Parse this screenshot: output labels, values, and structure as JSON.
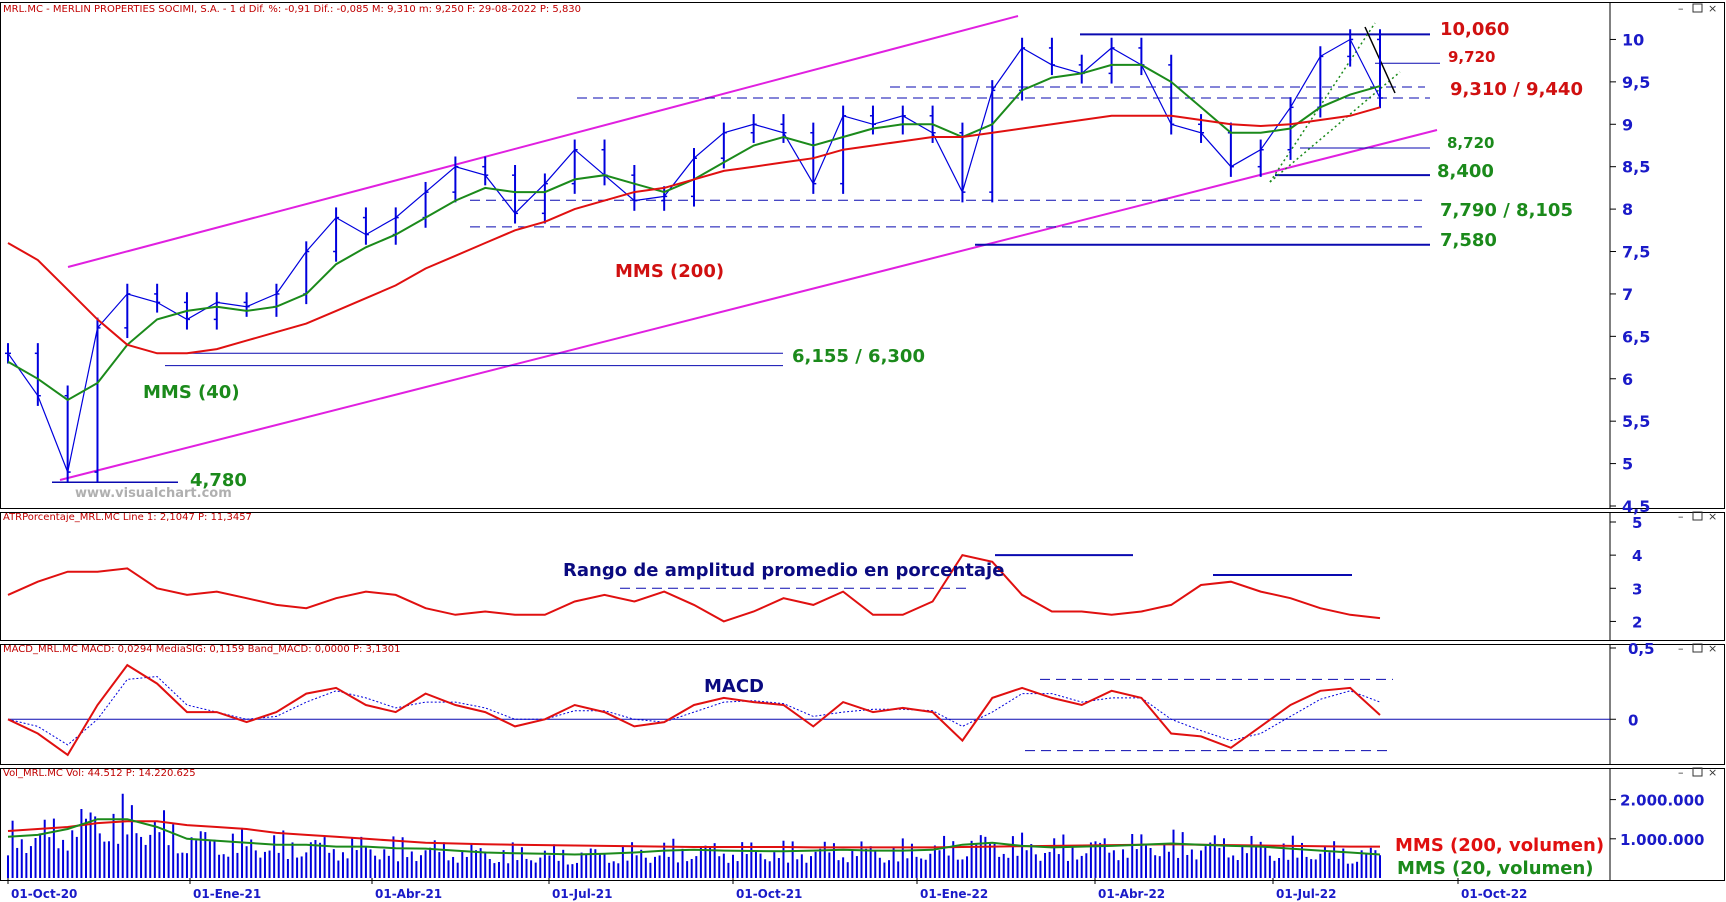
{
  "colors": {
    "price": "#0000dd",
    "mms200": "#e01010",
    "mms40": "#1b8a1b",
    "channel": "#e020e0",
    "level": "#0a0ab0",
    "axis": "#1a1ac8",
    "frame": "#000000",
    "header": "#c00000"
  },
  "panels": {
    "price": {
      "header": "MRL.MC - MERLIN PROPERTIES SOCIMI, S.A. - 1 d  Dif. %: -0,91  Dif.: -0,085  M: 9,310  m: 9,250  F: 29-08-2022  P: 5,830",
      "watermark": "www.visualchart.com",
      "ticks": [
        "10",
        "9,5",
        "9",
        "8,5",
        "8",
        "7,5",
        "7",
        "6,5",
        "6",
        "5,5",
        "5",
        "4,5"
      ],
      "annotations": {
        "mms200": "MMS (200)",
        "mms40": "MMS (40)",
        "low": "4,780",
        "support1": "6,155 / 6,300",
        "resistance": "10,060",
        "level_9720": "9,720",
        "level_9310": "9,310 / 9,440",
        "level_8720": "8,720",
        "level_8400": "8,400",
        "level_7790": "7,790 / 8,105",
        "level_7580": "7,580"
      }
    },
    "atr": {
      "header": "ATRPorcentaje_MRL.MC  Line 1: 2,1047  P: 11,3457",
      "title": "Rango de amplitud promedio en porcentaje",
      "ticks": [
        "5",
        "4",
        "3",
        "2"
      ]
    },
    "macd": {
      "header": "MACD_MRL.MC  MACD: 0,0294  MediaSIG: 0,1159  Band_MACD: 0,0000  P: 3,1301",
      "title": "MACD",
      "ticks": [
        "0,5",
        "0"
      ]
    },
    "volume": {
      "header": "Vol_MRL.MC  Vol: 44.512  P: 14.220.625",
      "ticks": [
        "2.000.000",
        "1.000.000"
      ],
      "legend_200": "MMS (200, volumen)",
      "legend_20": "MMS (20, volumen)"
    }
  },
  "x_axis": {
    "labels": [
      "01-Oct-20",
      "01-Ene-21",
      "01-Abr-21",
      "01-Jul-21",
      "01-Oct-21",
      "01-Ene-22",
      "01-Abr-22",
      "01-Jul-22",
      "01-Oct-22"
    ]
  },
  "chart_data": [
    {
      "type": "line",
      "title": "MRL.MC - MERLIN PROPERTIES SOCIMI, S.A. - 1 d",
      "x": [
        "01-Oct-20",
        "15-Oct-20",
        "02-Nov-20",
        "16-Nov-20",
        "01-Dic-20",
        "15-Dic-20",
        "04-Ene-21",
        "18-Ene-21",
        "01-Feb-21",
        "15-Feb-21",
        "01-Mar-21",
        "15-Mar-21",
        "01-Abr-21",
        "15-Abr-21",
        "03-May-21",
        "17-May-21",
        "01-Jun-21",
        "15-Jun-21",
        "01-Jul-21",
        "15-Jul-21",
        "02-Ago-21",
        "16-Ago-21",
        "01-Sep-21",
        "15-Sep-21",
        "01-Oct-21",
        "15-Oct-21",
        "02-Nov-21",
        "15-Nov-21",
        "01-Dic-21",
        "15-Dic-21",
        "03-Ene-22",
        "17-Ene-22",
        "01-Feb-22",
        "15-Feb-22",
        "01-Mar-22",
        "15-Mar-22",
        "01-Abr-22",
        "18-Abr-22",
        "02-May-22",
        "16-May-22",
        "01-Jun-22",
        "15-Jun-22",
        "01-Jul-22",
        "15-Jul-22",
        "01-Ago-22",
        "15-Ago-22",
        "29-Ago-22"
      ],
      "series": [
        {
          "name": "Close",
          "values": [
            6.3,
            5.8,
            4.9,
            6.6,
            7.0,
            6.9,
            6.7,
            6.9,
            6.85,
            7.0,
            7.5,
            7.9,
            7.7,
            7.9,
            8.2,
            8.5,
            8.4,
            7.95,
            8.3,
            8.7,
            8.4,
            8.1,
            8.15,
            8.6,
            8.9,
            9.0,
            8.9,
            8.3,
            9.1,
            9.0,
            9.1,
            8.9,
            8.2,
            9.4,
            9.9,
            9.7,
            9.6,
            9.9,
            9.7,
            9.0,
            8.9,
            8.5,
            8.7,
            9.2,
            9.8,
            10.0,
            9.31
          ]
        },
        {
          "name": "MMS (40)",
          "values": [
            6.2,
            6.0,
            5.75,
            5.95,
            6.4,
            6.7,
            6.8,
            6.85,
            6.8,
            6.85,
            7.0,
            7.35,
            7.55,
            7.7,
            7.9,
            8.1,
            8.25,
            8.2,
            8.2,
            8.35,
            8.4,
            8.3,
            8.2,
            8.35,
            8.55,
            8.75,
            8.85,
            8.75,
            8.85,
            8.95,
            9.0,
            9.0,
            8.85,
            9.0,
            9.4,
            9.55,
            9.6,
            9.7,
            9.7,
            9.5,
            9.2,
            8.9,
            8.9,
            8.95,
            9.2,
            9.35,
            9.45
          ]
        },
        {
          "name": "MMS (200)",
          "values": [
            7.6,
            7.4,
            7.05,
            6.7,
            6.4,
            6.3,
            6.3,
            6.35,
            6.45,
            6.55,
            6.65,
            6.8,
            6.95,
            7.1,
            7.3,
            7.45,
            7.6,
            7.75,
            7.85,
            8.0,
            8.1,
            8.2,
            8.25,
            8.35,
            8.45,
            8.5,
            8.55,
            8.6,
            8.7,
            8.75,
            8.8,
            8.85,
            8.85,
            8.9,
            8.95,
            9.0,
            9.05,
            9.1,
            9.1,
            9.1,
            9.05,
            9.0,
            8.98,
            9.0,
            9.05,
            9.1,
            9.2
          ]
        }
      ],
      "ylim": [
        4.5,
        10.3
      ],
      "horizontal_levels": [
        4.78,
        6.155,
        6.3,
        7.58,
        7.79,
        8.105,
        8.4,
        8.72,
        9.31,
        9.44,
        9.72,
        10.06
      ]
    },
    {
      "type": "line",
      "title": "ATRPorcentaje_MRL.MC",
      "series": [
        {
          "name": "Line 1",
          "values": [
            2.8,
            3.2,
            3.5,
            3.5,
            3.6,
            3.0,
            2.8,
            2.9,
            2.7,
            2.5,
            2.4,
            2.7,
            2.9,
            2.8,
            2.4,
            2.2,
            2.3,
            2.2,
            2.2,
            2.6,
            2.8,
            2.6,
            2.9,
            2.5,
            2.0,
            2.3,
            2.7,
            2.5,
            2.9,
            2.2,
            2.2,
            2.6,
            4.0,
            3.8,
            2.8,
            2.3,
            2.3,
            2.2,
            2.3,
            2.5,
            3.1,
            3.2,
            2.9,
            2.7,
            2.4,
            2.2,
            2.1
          ]
        }
      ],
      "ylim": [
        1.5,
        5.0
      ]
    },
    {
      "type": "line",
      "title": "MACD_MRL.MC",
      "series": [
        {
          "name": "MACD",
          "values": [
            0.0,
            -0.1,
            -0.25,
            0.1,
            0.38,
            0.25,
            0.05,
            0.05,
            -0.02,
            0.05,
            0.18,
            0.22,
            0.1,
            0.05,
            0.18,
            0.1,
            0.05,
            -0.05,
            0.0,
            0.1,
            0.05,
            -0.05,
            -0.02,
            0.1,
            0.15,
            0.12,
            0.1,
            -0.05,
            0.12,
            0.05,
            0.08,
            0.05,
            -0.15,
            0.15,
            0.22,
            0.15,
            0.1,
            0.2,
            0.15,
            -0.1,
            -0.12,
            -0.2,
            -0.05,
            0.1,
            0.2,
            0.22,
            0.03
          ]
        },
        {
          "name": "MediaSIG",
          "values": [
            0.0,
            -0.05,
            -0.18,
            0.0,
            0.28,
            0.3,
            0.1,
            0.05,
            0.0,
            0.02,
            0.12,
            0.2,
            0.15,
            0.08,
            0.12,
            0.12,
            0.08,
            0.0,
            0.0,
            0.06,
            0.06,
            0.0,
            -0.02,
            0.05,
            0.12,
            0.13,
            0.11,
            0.02,
            0.05,
            0.07,
            0.07,
            0.06,
            -0.05,
            0.05,
            0.18,
            0.18,
            0.12,
            0.15,
            0.15,
            0.0,
            -0.08,
            -0.15,
            -0.1,
            0.02,
            0.14,
            0.2,
            0.12
          ]
        }
      ],
      "ylim": [
        -0.3,
        0.5
      ]
    },
    {
      "type": "bar",
      "title": "Vol_MRL.MC",
      "series": [
        {
          "name": "MMS (200, volumen)",
          "values": [
            1200000,
            1250000,
            1300000,
            1400000,
            1450000,
            1450000,
            1350000,
            1300000,
            1250000,
            1150000,
            1100000,
            1050000,
            1000000,
            950000,
            900000,
            880000,
            860000,
            850000,
            840000,
            830000,
            820000,
            810000,
            800000,
            790000,
            790000,
            790000,
            790000,
            780000,
            780000,
            780000,
            780000,
            780000,
            790000,
            800000,
            810000,
            820000,
            830000,
            840000,
            850000,
            860000,
            850000,
            840000,
            830000,
            820000,
            810000,
            800000,
            800000
          ]
        },
        {
          "name": "MMS (20, volumen)",
          "values": [
            1050000,
            1100000,
            1250000,
            1500000,
            1500000,
            1300000,
            1000000,
            950000,
            900000,
            850000,
            850000,
            800000,
            800000,
            760000,
            750000,
            700000,
            650000,
            630000,
            620000,
            600000,
            620000,
            650000,
            700000,
            720000,
            700000,
            690000,
            680000,
            700000,
            720000,
            700000,
            700000,
            720000,
            850000,
            900000,
            820000,
            780000,
            800000,
            820000,
            850000,
            880000,
            850000,
            820000,
            800000,
            750000,
            700000,
            650000,
            600000
          ]
        }
      ],
      "ylim": [
        0,
        2500000
      ]
    }
  ]
}
